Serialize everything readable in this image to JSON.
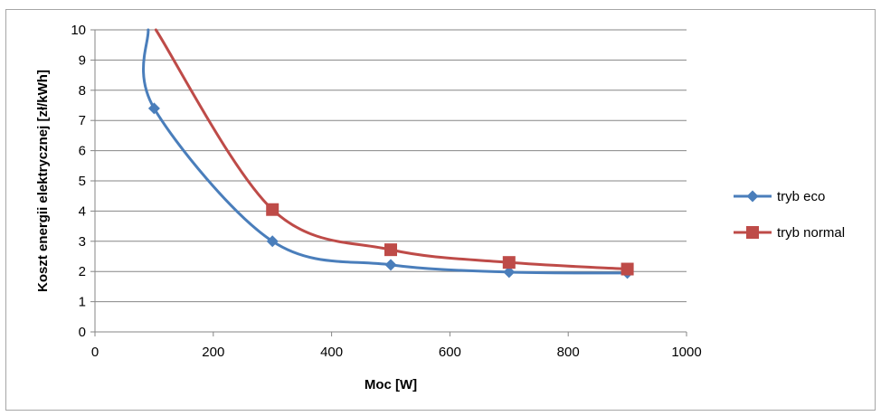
{
  "chart_data": {
    "type": "scatter",
    "title": "",
    "xlabel": "Moc [W]",
    "ylabel": "Koszt energii elektrycznej [zł/kWh]",
    "xlim": [
      0,
      1000
    ],
    "ylim": [
      0,
      10
    ],
    "x_ticks": [
      "0",
      "200",
      "400",
      "600",
      "800",
      "1000"
    ],
    "y_ticks": [
      "0",
      "1",
      "2",
      "3",
      "4",
      "5",
      "6",
      "7",
      "8",
      "9",
      "10"
    ],
    "grid": "horizontal",
    "legend_position": "right",
    "smoothed_lines": true,
    "series": [
      {
        "name": "tryb eco",
        "color": "#4a7ebb",
        "marker": "diamond",
        "x": [
          100,
          300,
          500,
          700,
          900
        ],
        "y": [
          7.4,
          3.0,
          2.22,
          1.98,
          1.95
        ],
        "curve_from": [
          90,
          10
        ]
      },
      {
        "name": "tryb normal",
        "color": "#be4b48",
        "marker": "square",
        "x": [
          300,
          500,
          700,
          900
        ],
        "y": [
          4.05,
          2.72,
          2.3,
          2.08
        ],
        "curve_from": [
          103,
          10
        ]
      }
    ]
  }
}
